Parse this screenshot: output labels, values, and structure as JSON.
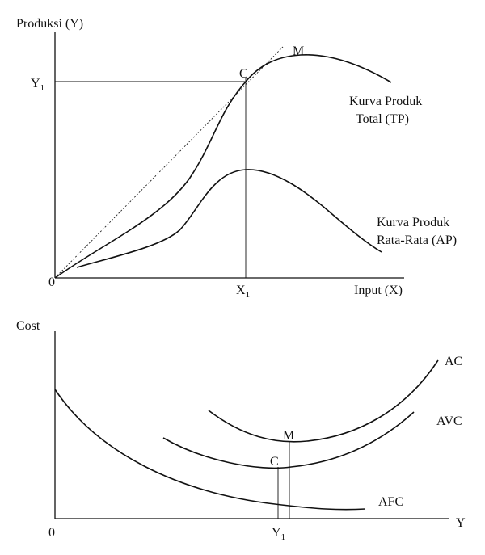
{
  "top_panel": {
    "y_axis_label": "Produksi (Y)",
    "x_axis_label": "Input (X)",
    "origin_label": "0",
    "y1_label": "Y",
    "y1_sub": "1",
    "x1_label": "X",
    "x1_sub": "1",
    "point_c": "C",
    "point_m": "M",
    "tp_label_line1": "Kurva Produk",
    "tp_label_line2": "Total (TP)",
    "ap_label_line1": "Kurva Produk",
    "ap_label_line2": "Rata-Rata (AP)"
  },
  "bottom_panel": {
    "y_axis_label": "Cost",
    "x_axis_label": "Y",
    "origin_label": "0",
    "y1_label": "Y",
    "y1_sub": "1",
    "point_c": "C",
    "point_m": "M",
    "ac_label": "AC",
    "avc_label": "AVC",
    "afc_label": "AFC"
  },
  "colors": {
    "ink": "#111111",
    "background": "#ffffff"
  }
}
